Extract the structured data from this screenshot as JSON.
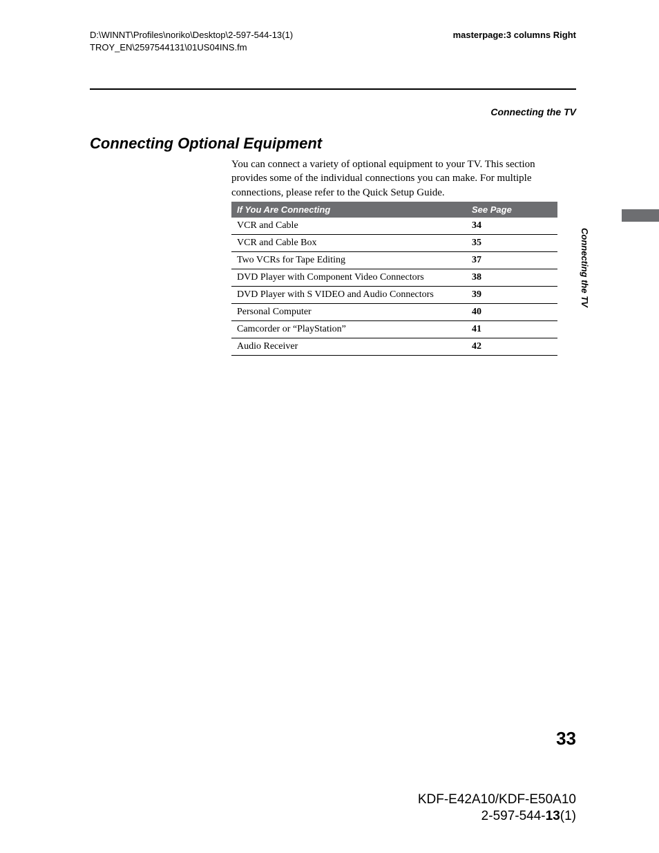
{
  "header": {
    "path_line1": "D:\\WINNT\\Profiles\\noriko\\Desktop\\2-597-544-13(1)",
    "path_line2": "TROY_EN\\2597544131\\01US04INS.fm",
    "masterpage": "masterpage:3 columns Right"
  },
  "section_label": "Connecting the TV",
  "heading": "Connecting Optional Equipment",
  "intro": "You can connect a variety of optional equipment to your TV. This section provides some of the individual connections you can make. For multiple connections, please refer to the Quick Setup Guide.",
  "table": {
    "col1": "If You Are Connecting",
    "col2": "See Page",
    "rows": [
      {
        "item": "VCR and Cable",
        "page": "34"
      },
      {
        "item": "VCR and Cable Box",
        "page": "35"
      },
      {
        "item": "Two VCRs for Tape Editing",
        "page": "37"
      },
      {
        "item": "DVD Player with Component Video Connectors",
        "page": "38"
      },
      {
        "item": "DVD Player with S VIDEO and Audio Connectors",
        "page": "39"
      },
      {
        "item": "Personal Computer",
        "page": "40"
      },
      {
        "item": "Camcorder or “PlayStation”",
        "page": "41"
      },
      {
        "item": "Audio Receiver",
        "page": "42"
      }
    ]
  },
  "side_label": "Connecting the TV",
  "page_number": "33",
  "footer": {
    "model": "KDF-E42A10/KDF-E50A10",
    "doc_prefix": "2-597-544-",
    "doc_bold": "13",
    "doc_suffix": "(1)"
  },
  "style": {
    "header_row_bg": "#6d6e71",
    "header_row_fg": "#ffffff",
    "tab_bg": "#6d6e71",
    "rule_color": "#000000",
    "body_font": "Times New Roman",
    "sans_font": "Arial"
  }
}
